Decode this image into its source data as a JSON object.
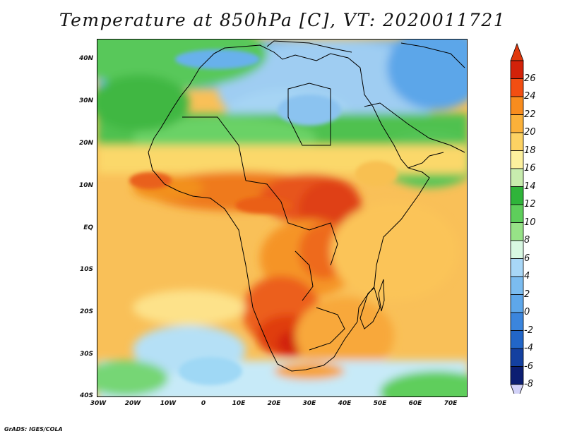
{
  "title": "Temperature at 850hPa [C], VT: 2020011721",
  "credit": "GrADS: IGES/COLA",
  "map": {
    "lat_labels": [
      "40N",
      "30N",
      "20N",
      "10N",
      "EQ",
      "10S",
      "20S",
      "30S",
      "40S"
    ],
    "lon_labels": [
      "30W",
      "20W",
      "10W",
      "0",
      "10E",
      "20E",
      "30E",
      "40E",
      "50E",
      "60E",
      "70E"
    ],
    "lat_range": [
      -40,
      45
    ],
    "lon_range": [
      -30,
      75
    ]
  },
  "colorbar": {
    "labels": [
      "26",
      "24",
      "22",
      "20",
      "18",
      "16",
      "14",
      "12",
      "10",
      "8",
      "6",
      "4",
      "2",
      "0",
      "-2",
      "-4",
      "-6",
      "-8"
    ],
    "colors": [
      "#d32209",
      "#f24e12",
      "#f88c1e",
      "#fbb13a",
      "#fcd263",
      "#fdf09e",
      "#c8ecae",
      "#2fb43a",
      "#5ece5b",
      "#97e287",
      "#d8f8e2",
      "#a8d7f7",
      "#7bbcf0",
      "#5ea7ea",
      "#3b85dd",
      "#2266c8",
      "#1440a0",
      "#0c1e72"
    ],
    "top_color": "#e0380c",
    "bottom_color": "#d2d2f8"
  },
  "colors": {
    "ocean_base": "#f9c058",
    "land_hot": "#e54a10",
    "land_warm": "#f79a2c",
    "north_cold": "#8fc2ef",
    "sahara_green": "#58c85a",
    "south_cold": "#bfe4f6",
    "coast": "#000000"
  }
}
